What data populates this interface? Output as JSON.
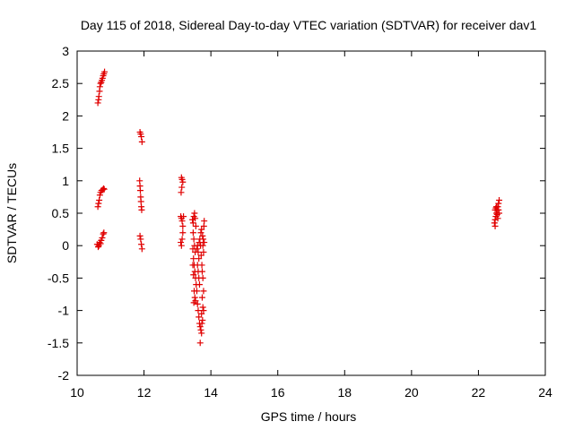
{
  "chart_data": {
    "type": "scatter",
    "title": "Day 115 of 2018, Sidereal Day-to-day VTEC variation (SDTVAR) for receiver dav1",
    "xlabel": "GPS time / hours",
    "ylabel": "SDTVAR / TECUs",
    "xlim": [
      10,
      24
    ],
    "ylim": [
      -2,
      3
    ],
    "xticks": [
      10,
      12,
      14,
      16,
      18,
      20,
      22,
      24
    ],
    "yticks": [
      -2,
      -1.5,
      -1,
      -0.5,
      0,
      0.5,
      1,
      1.5,
      2,
      2.5,
      3
    ],
    "xtick_labels": [
      "10",
      "12",
      "14",
      "16",
      "18",
      "20",
      "22",
      "24"
    ],
    "ytick_labels": [
      "-2",
      "-1.5",
      "-1",
      "-0.5",
      "0",
      "0.5",
      "1",
      "1.5",
      "2",
      "2.5",
      "3"
    ],
    "grid": false,
    "marker": "plus",
    "color": "#e00000",
    "series": [
      {
        "name": "sdtvar",
        "points": [
          [
            10.62,
            2.2
          ],
          [
            10.64,
            2.25
          ],
          [
            10.65,
            2.3
          ],
          [
            10.67,
            2.38
          ],
          [
            10.68,
            2.45
          ],
          [
            10.7,
            2.5
          ],
          [
            10.72,
            2.52
          ],
          [
            10.74,
            2.55
          ],
          [
            10.76,
            2.58
          ],
          [
            10.78,
            2.62
          ],
          [
            10.8,
            2.65
          ],
          [
            10.82,
            2.68
          ],
          [
            10.62,
            0.6
          ],
          [
            10.64,
            0.65
          ],
          [
            10.66,
            0.7
          ],
          [
            10.68,
            0.78
          ],
          [
            10.7,
            0.82
          ],
          [
            10.73,
            0.85
          ],
          [
            10.76,
            0.86
          ],
          [
            10.79,
            0.88
          ],
          [
            10.81,
            0.87
          ],
          [
            10.6,
            0.02
          ],
          [
            10.63,
            -0.02
          ],
          [
            10.65,
            0.0
          ],
          [
            10.67,
            0.05
          ],
          [
            10.7,
            0.03
          ],
          [
            10.72,
            0.08
          ],
          [
            10.75,
            0.12
          ],
          [
            10.78,
            0.18
          ],
          [
            10.8,
            0.2
          ],
          [
            11.88,
            1.75
          ],
          [
            11.9,
            1.72
          ],
          [
            11.92,
            1.68
          ],
          [
            11.94,
            1.6
          ],
          [
            11.87,
            1.0
          ],
          [
            11.88,
            0.92
          ],
          [
            11.89,
            0.85
          ],
          [
            11.9,
            0.75
          ],
          [
            11.91,
            0.68
          ],
          [
            11.92,
            0.6
          ],
          [
            11.93,
            0.55
          ],
          [
            11.88,
            0.15
          ],
          [
            11.9,
            0.1
          ],
          [
            11.92,
            0.02
          ],
          [
            11.94,
            -0.05
          ],
          [
            13.12,
            1.05
          ],
          [
            13.14,
            1.02
          ],
          [
            13.16,
            0.98
          ],
          [
            13.13,
            0.9
          ],
          [
            13.11,
            0.82
          ],
          [
            13.1,
            0.45
          ],
          [
            13.12,
            0.42
          ],
          [
            13.14,
            0.38
          ],
          [
            13.16,
            0.3
          ],
          [
            13.18,
            0.45
          ],
          [
            13.1,
            0.05
          ],
          [
            13.12,
            0.0
          ],
          [
            13.14,
            0.1
          ],
          [
            13.16,
            0.2
          ],
          [
            13.45,
            0.4
          ],
          [
            13.47,
            0.35
          ],
          [
            13.49,
            0.45
          ],
          [
            13.51,
            0.5
          ],
          [
            13.53,
            0.42
          ],
          [
            13.55,
            0.3
          ],
          [
            13.47,
            0.2
          ],
          [
            13.49,
            0.1
          ],
          [
            13.51,
            0.0
          ],
          [
            13.53,
            -0.1
          ],
          [
            13.46,
            -0.05
          ],
          [
            13.48,
            -0.2
          ],
          [
            13.5,
            -0.3
          ],
          [
            13.52,
            -0.4
          ],
          [
            13.54,
            -0.5
          ],
          [
            13.56,
            -0.6
          ],
          [
            13.46,
            -0.3
          ],
          [
            13.48,
            -0.45
          ],
          [
            13.5,
            -0.7
          ],
          [
            13.52,
            -0.8
          ],
          [
            13.54,
            -0.85
          ],
          [
            13.49,
            -0.88
          ],
          [
            13.58,
            -0.05
          ],
          [
            13.6,
            0.0
          ],
          [
            13.62,
            -0.1
          ],
          [
            13.64,
            -0.2
          ],
          [
            13.6,
            -0.3
          ],
          [
            13.62,
            -0.4
          ],
          [
            13.64,
            -0.5
          ],
          [
            13.66,
            -0.6
          ],
          [
            13.58,
            -0.7
          ],
          [
            13.6,
            -0.9
          ],
          [
            13.62,
            -1.0
          ],
          [
            13.64,
            -1.1
          ],
          [
            13.66,
            -1.2
          ],
          [
            13.68,
            -1.25
          ],
          [
            13.7,
            -1.3
          ],
          [
            13.72,
            -1.35
          ],
          [
            13.68,
            -1.5
          ],
          [
            13.65,
            0.05
          ],
          [
            13.67,
            0.1
          ],
          [
            13.69,
            0.0
          ],
          [
            13.71,
            -0.15
          ],
          [
            13.73,
            -0.3
          ],
          [
            13.7,
            0.2
          ],
          [
            13.72,
            0.25
          ],
          [
            13.75,
            0.15
          ],
          [
            13.77,
            0.1
          ],
          [
            13.79,
            0.3
          ],
          [
            13.8,
            0.38
          ],
          [
            13.76,
            0.0
          ],
          [
            13.78,
            -0.1
          ],
          [
            13.8,
            0.05
          ],
          [
            13.74,
            -0.4
          ],
          [
            13.76,
            -0.5
          ],
          [
            13.78,
            -0.7
          ],
          [
            13.74,
            -0.8
          ],
          [
            13.76,
            -0.95
          ],
          [
            13.78,
            -1.0
          ],
          [
            13.75,
            -1.15
          ],
          [
            13.73,
            -1.2
          ],
          [
            13.72,
            -1.05
          ],
          [
            22.48,
            0.35
          ],
          [
            22.5,
            0.4
          ],
          [
            22.52,
            0.45
          ],
          [
            22.54,
            0.5
          ],
          [
            22.56,
            0.55
          ],
          [
            22.58,
            0.6
          ],
          [
            22.6,
            0.65
          ],
          [
            22.62,
            0.7
          ],
          [
            22.5,
            0.55
          ],
          [
            22.52,
            0.58
          ],
          [
            22.54,
            0.6
          ],
          [
            22.56,
            0.48
          ],
          [
            22.58,
            0.42
          ],
          [
            22.5,
            0.3
          ],
          [
            22.6,
            0.55
          ],
          [
            22.62,
            0.5
          ]
        ]
      }
    ]
  }
}
